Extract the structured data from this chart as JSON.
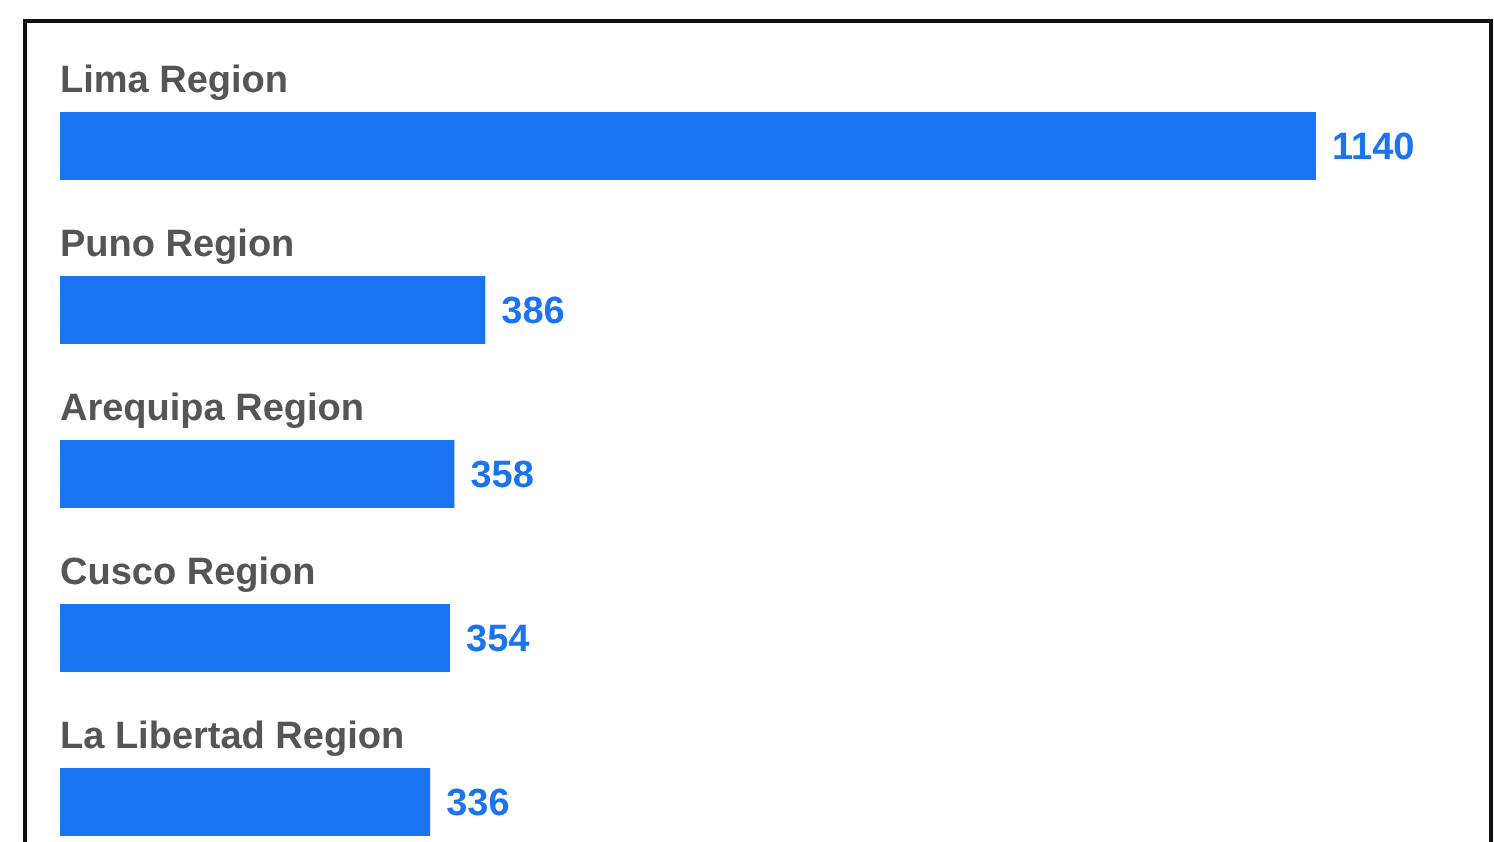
{
  "chart_data": {
    "type": "bar",
    "orientation": "horizontal",
    "categories": [
      "Lima Region",
      "Puno Region",
      "Arequipa Region",
      "Cusco Region",
      "La Libertad Region"
    ],
    "values": [
      1140,
      386,
      358,
      354,
      336
    ],
    "color": "#1a73f0",
    "data_labels": true
  }
}
